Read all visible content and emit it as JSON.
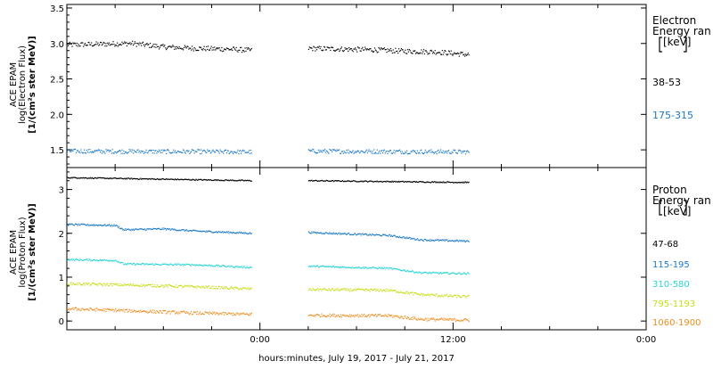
{
  "chart_data": [
    {
      "type": "scatter",
      "ylabel_lines": [
        "ACE EPAM",
        "log(Electron Flux)",
        "[1/(cm²s ster MeV)]"
      ],
      "ylim": [
        1.25,
        3.55
      ],
      "yticks": [
        1.5,
        2.0,
        2.5,
        3.0,
        3.5
      ],
      "ytick_labels": [
        "1.5",
        "2.0",
        "2.5",
        "3.0",
        "3.5"
      ],
      "legend_title": [
        "Electron",
        "Energy ran",
        "[keV]"
      ],
      "series": [
        {
          "name": "38-53",
          "color": "#000000",
          "segments": [
            [
              [
                0,
                2.98
              ],
              [
                4,
                2.99
              ],
              [
                8,
                3.0
              ],
              [
                12,
                2.95
              ],
              [
                16,
                2.93
              ],
              [
                20,
                2.92
              ],
              [
                23,
                2.9
              ]
            ],
            [
              [
                30,
                2.93
              ],
              [
                34,
                2.92
              ],
              [
                38,
                2.91
              ],
              [
                42,
                2.89
              ],
              [
                46,
                2.88
              ],
              [
                50,
                2.84
              ]
            ]
          ],
          "noise": 0.035
        },
        {
          "name": "175-315",
          "color": "#1a78c8",
          "segments": [
            [
              [
                0,
                1.48
              ],
              [
                23,
                1.47
              ]
            ],
            [
              [
                30,
                1.48
              ],
              [
                50,
                1.47
              ]
            ]
          ],
          "noise": 0.03
        }
      ]
    },
    {
      "type": "scatter",
      "ylabel_lines": [
        "ACE EPAM",
        "log(Proton Flux)",
        "[1/(cm²s ster MeV)]"
      ],
      "ylim": [
        -0.2,
        3.5
      ],
      "yticks": [
        0,
        1,
        2,
        3
      ],
      "ytick_labels": [
        "0",
        "1",
        "2",
        "3"
      ],
      "legend_title": [
        "Proton",
        "Energy ran",
        "[keV]"
      ],
      "series": [
        {
          "name": "47-68",
          "color": "#000000",
          "segments": [
            [
              [
                0,
                3.27
              ],
              [
                23,
                3.2
              ]
            ],
            [
              [
                30,
                3.2
              ],
              [
                50,
                3.16
              ]
            ]
          ],
          "noise": 0.012
        },
        {
          "name": "115-195",
          "color": "#1a78c8",
          "segments": [
            [
              [
                0,
                2.2
              ],
              [
                6,
                2.18
              ],
              [
                7,
                2.08
              ],
              [
                12,
                2.1
              ],
              [
                16,
                2.05
              ],
              [
                23,
                2.0
              ]
            ],
            [
              [
                30,
                2.02
              ],
              [
                40,
                1.95
              ],
              [
                44,
                1.85
              ],
              [
                50,
                1.82
              ]
            ]
          ],
          "noise": 0.02
        },
        {
          "name": "310-580",
          "color": "#2ad4d4",
          "segments": [
            [
              [
                0,
                1.4
              ],
              [
                6,
                1.38
              ],
              [
                7,
                1.3
              ],
              [
                16,
                1.28
              ],
              [
                23,
                1.22
              ]
            ],
            [
              [
                30,
                1.25
              ],
              [
                40,
                1.2
              ],
              [
                44,
                1.1
              ],
              [
                50,
                1.08
              ]
            ]
          ],
          "noise": 0.02
        },
        {
          "name": "795-1193",
          "color": "#c8dc14",
          "segments": [
            [
              [
                0,
                0.85
              ],
              [
                8,
                0.82
              ],
              [
                16,
                0.78
              ],
              [
                23,
                0.73
              ]
            ],
            [
              [
                30,
                0.72
              ],
              [
                40,
                0.7
              ],
              [
                44,
                0.6
              ],
              [
                50,
                0.55
              ]
            ]
          ],
          "noise": 0.03
        },
        {
          "name": "1060-1900",
          "color": "#f08c1e",
          "segments": [
            [
              [
                0,
                0.28
              ],
              [
                8,
                0.23
              ],
              [
                16,
                0.18
              ],
              [
                23,
                0.15
              ]
            ],
            [
              [
                30,
                0.13
              ],
              [
                40,
                0.12
              ],
              [
                44,
                0.04
              ],
              [
                50,
                0.02
              ]
            ]
          ],
          "noise": 0.035
        }
      ]
    }
  ],
  "x_axis": {
    "xlim": [
      0,
      72
    ],
    "ticks": [
      0,
      24,
      48,
      72
    ],
    "tick_labels": [
      "",
      "0:00",
      "12:00",
      "0:00"
    ],
    "minor_step": 6,
    "xlabel": "hours:minutes, July 19, 2017 - July 21, 2017"
  }
}
